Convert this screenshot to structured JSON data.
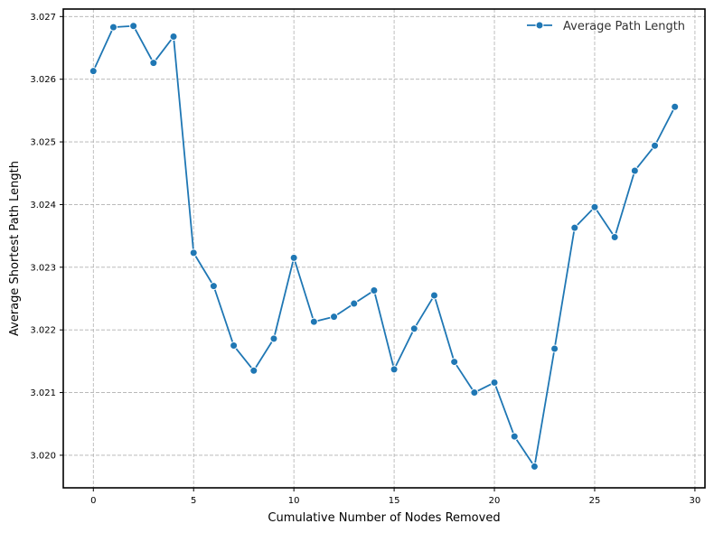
{
  "chart_data": {
    "type": "line",
    "title": "",
    "xlabel": "Cumulative Number of Nodes Removed",
    "ylabel": "Average Shortest Path Length",
    "xlim": [
      -1.5,
      30.5
    ],
    "ylim": [
      3.01948,
      3.02712
    ],
    "x_ticks": [
      0,
      5,
      10,
      15,
      20,
      25,
      30
    ],
    "y_ticks": [
      3.02,
      3.021,
      3.022,
      3.023,
      3.024,
      3.025,
      3.026,
      3.027
    ],
    "y_tick_labels": [
      "3.020",
      "3.021",
      "3.022",
      "3.023",
      "3.024",
      "3.025",
      "3.026",
      "3.027"
    ],
    "grid": true,
    "grid_style": "dashed",
    "legend_position": "top-right",
    "series": [
      {
        "name": "Average Path Length",
        "color": "#1f77b4",
        "marker": "circle",
        "x": [
          0,
          1,
          2,
          3,
          4,
          5,
          6,
          7,
          8,
          9,
          10,
          11,
          12,
          13,
          14,
          15,
          16,
          17,
          18,
          19,
          20,
          21,
          22,
          23,
          24,
          25,
          26,
          27,
          28,
          29
        ],
        "values": [
          3.02613,
          3.02683,
          3.02685,
          3.02626,
          3.02668,
          3.02323,
          3.0227,
          3.02175,
          3.02135,
          3.02186,
          3.02315,
          3.02213,
          3.02221,
          3.02242,
          3.02263,
          3.02137,
          3.02202,
          3.02255,
          3.02149,
          3.021,
          3.02116,
          3.0203,
          3.01982,
          3.0217,
          3.02363,
          3.02396,
          3.02348,
          3.02454,
          3.02494,
          3.02556
        ]
      }
    ]
  }
}
